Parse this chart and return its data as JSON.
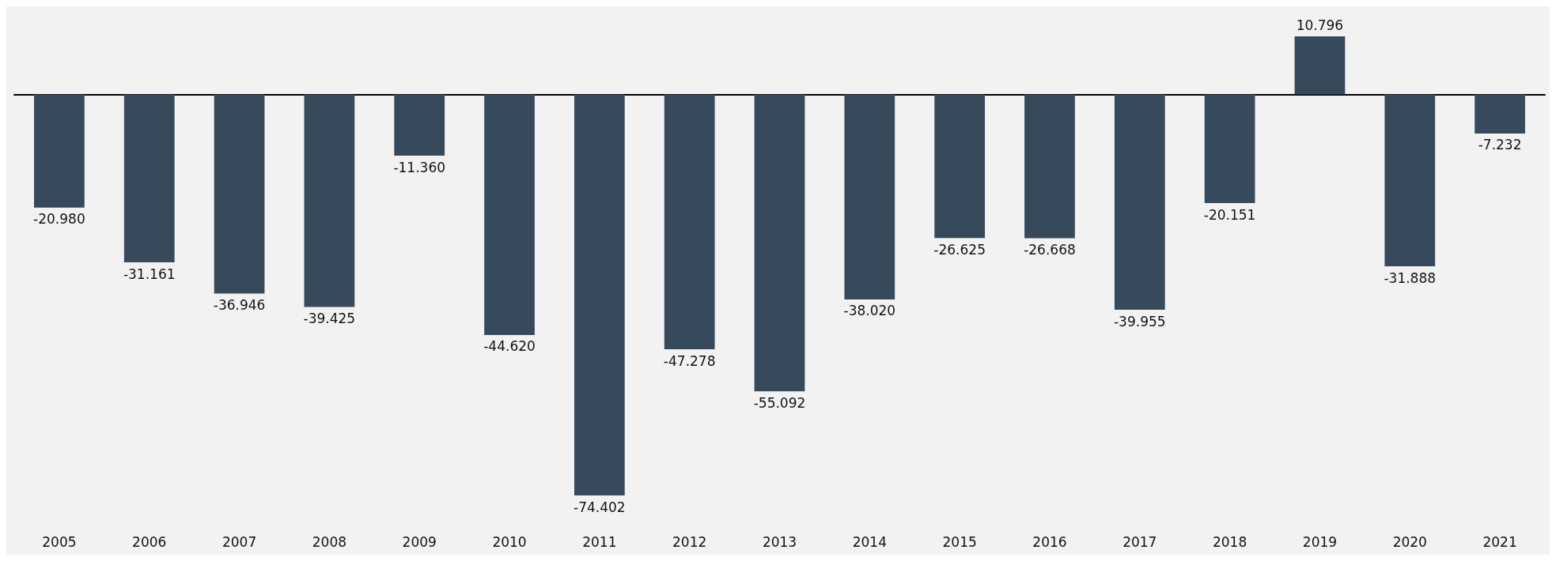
{
  "chart_data": {
    "type": "bar",
    "categories": [
      "2005",
      "2006",
      "2007",
      "2008",
      "2009",
      "2010",
      "2011",
      "2012",
      "2013",
      "2014",
      "2015",
      "2016",
      "2017",
      "2018",
      "2019",
      "2020",
      "2021"
    ],
    "values": [
      -20.98,
      -31.161,
      -36.946,
      -39.425,
      -11.36,
      -44.62,
      -74.402,
      -47.278,
      -55.092,
      -38.02,
      -26.625,
      -26.668,
      -39.955,
      -20.151,
      10.796,
      -31.888,
      -7.232
    ],
    "value_labels": [
      "-20.980",
      "-31.161",
      "-36.946",
      "-39.425",
      "-11.360",
      "-44.620",
      "-74.402",
      "-47.278",
      "-55.092",
      "-38.020",
      "-26.625",
      "-26.668",
      "-39.955",
      "-20.151",
      "10.796",
      "-31.888",
      "-7.232"
    ],
    "color": "#374a5c",
    "grid": false,
    "tick_labels": "x"
  }
}
